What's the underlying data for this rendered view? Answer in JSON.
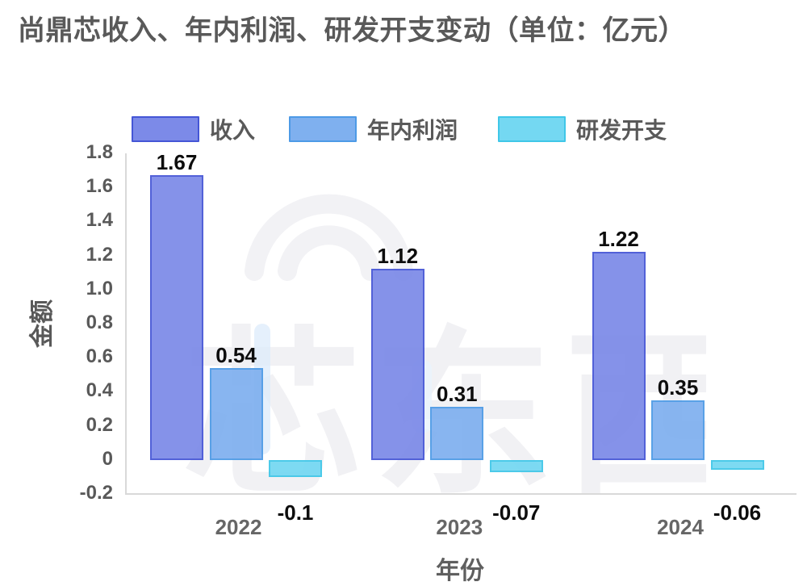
{
  "title": "尚鼎芯收入、年内利润、研发开支变动（单位：亿元）",
  "watermark": {
    "text": "芯东西"
  },
  "colors": {
    "title_text": "#595959",
    "tick_text": "#595959",
    "category_text": "#666666",
    "value_label_text": "#0d0d0d",
    "axis_line": "#d9d9d9",
    "watermark_gray": "#f2f2f5",
    "watermark_accent": "#dcebfb"
  },
  "chart_data": {
    "type": "bar",
    "title": "尚鼎芯收入、年内利润、研发开支变动（单位：亿元）",
    "xlabel": "年份",
    "ylabel": "金额",
    "categories": [
      "2022",
      "2023",
      "2024"
    ],
    "series": [
      {
        "name": "收入",
        "values": [
          1.67,
          1.12,
          1.22
        ],
        "labels": [
          "1.67",
          "1.12",
          "1.22"
        ],
        "fill": "#7C8AE8",
        "border": "#4556D6"
      },
      {
        "name": "年内利润",
        "values": [
          0.54,
          0.31,
          0.35
        ],
        "labels": [
          "0.54",
          "0.31",
          "0.35"
        ],
        "fill": "#7FB0EF",
        "border": "#4D9AE6"
      },
      {
        "name": "研发开支",
        "values": [
          -0.1,
          -0.07,
          -0.06
        ],
        "labels": [
          "-0.1",
          "-0.07",
          "-0.06"
        ],
        "fill": "#74D8F2",
        "border": "#3FC7E8"
      }
    ],
    "ylim": [
      -0.2,
      1.8
    ],
    "yticks": [
      "1.8",
      "1.6",
      "1.4",
      "1.2",
      "1.0",
      "0.8",
      "0.6",
      "0.4",
      "0.2",
      "0",
      "-0.2"
    ],
    "grid": false,
    "legend_position": "top-left"
  }
}
